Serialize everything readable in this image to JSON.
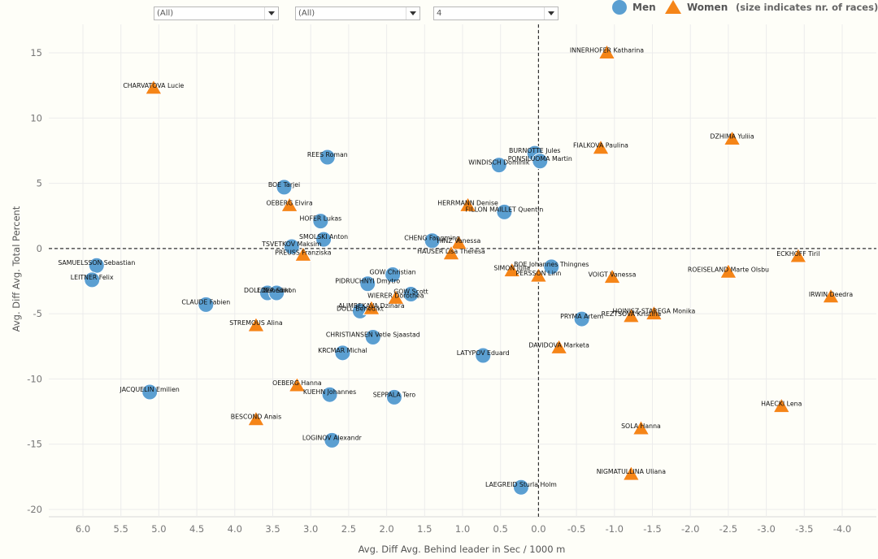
{
  "filters": [
    {
      "value": "(All)"
    },
    {
      "value": "(All)"
    },
    {
      "value": "4"
    }
  ],
  "legend": {
    "men_label": "Men",
    "women_label": "Women",
    "note": "(size indicates nr. of races)"
  },
  "colors": {
    "men": "#5b9fd1",
    "women": "#f58518",
    "background": "#fefef8",
    "grid": "#ececec",
    "axis_text": "#777777"
  },
  "chart_data": {
    "type": "scatter",
    "title": "",
    "xlabel": "Avg. Diff Avg. Behind leader in Sec / 1000 m",
    "ylabel": "Avg. Diff Avg. Total Percent",
    "x_reversed": true,
    "xlim": [
      6.5,
      -4.5
    ],
    "ylim": [
      -20.5,
      17
    ],
    "xticks": [
      6.0,
      5.5,
      5.0,
      4.5,
      4.0,
      3.5,
      3.0,
      2.5,
      2.0,
      1.5,
      1.0,
      0.5,
      0.0,
      -0.5,
      -1.0,
      -1.5,
      -2.0,
      -2.5,
      -3.0,
      -3.5,
      -4.0
    ],
    "xtick_labels": [
      "6.0",
      "5.5",
      "5.0",
      "4.5",
      "4.0",
      "3.5",
      "3.0",
      "2.5",
      "2.0",
      "1.5",
      "1.0",
      "0.5",
      "0.0",
      "-0.5",
      "-1.0",
      "-1.5",
      "-2.0",
      "-2.5",
      "-3.0",
      "-3.5",
      "-4.0"
    ],
    "yticks": [
      15,
      10,
      5,
      0,
      -5,
      -10,
      -15,
      -20
    ],
    "ytick_labels": [
      "15",
      "10",
      "5",
      "0",
      "-5",
      "-10",
      "-15",
      "-20"
    ],
    "grid": true,
    "reference_lines": {
      "x": 0,
      "y": 0
    },
    "legend_position": "top-right",
    "series": [
      {
        "name": "Men",
        "marker": "circle",
        "points": [
          {
            "label": "REES Roman",
            "x": 2.78,
            "y": 7.0
          },
          {
            "label": "BOE Tarjei",
            "x": 3.35,
            "y": 4.7
          },
          {
            "label": "HOFER Lukas",
            "x": 2.87,
            "y": 2.1
          },
          {
            "label": "SMOLSKI Anton",
            "x": 2.83,
            "y": 0.7
          },
          {
            "label": "TSVETKOV Maksim",
            "x": 3.25,
            "y": 0.15
          },
          {
            "label": "SAMUELSSON Sebastian",
            "x": 5.82,
            "y": -1.3
          },
          {
            "label": "LEITNER Felix",
            "x": 5.88,
            "y": -2.4
          },
          {
            "label": "DOLL Benedikt",
            "x": 3.57,
            "y": -3.4
          },
          {
            "label": "EDER Simon",
            "x": 3.45,
            "y": -3.4
          },
          {
            "label": "CLAUDE Fabien",
            "x": 4.38,
            "y": -4.3
          },
          {
            "label": "GOW Christian",
            "x": 1.92,
            "y": -2.0
          },
          {
            "label": "PIDRUCHNYI Dmytro",
            "x": 2.25,
            "y": -2.7
          },
          {
            "label": "GOW Scott",
            "x": 1.68,
            "y": -3.5
          },
          {
            "label": "DOLL Benedikt",
            "x": 2.35,
            "y": -4.8
          },
          {
            "label": "CHRISTIANSEN Vetle Sjaastad",
            "x": 2.18,
            "y": -6.8
          },
          {
            "label": "KRCMAR Michal",
            "x": 2.58,
            "y": -8.0
          },
          {
            "label": "KUEHN Johannes",
            "x": 2.75,
            "y": -11.2
          },
          {
            "label": "SEPPALA Tero",
            "x": 1.9,
            "y": -11.4
          },
          {
            "label": "LOGINOV Alexandr",
            "x": 2.72,
            "y": -14.7
          },
          {
            "label": "JACQUELIN Emilien",
            "x": 5.12,
            "y": -11.0
          },
          {
            "label": "CHENG Fangming",
            "x": 1.4,
            "y": 0.6
          },
          {
            "label": "BURNOTTE Jules",
            "x": 0.05,
            "y": 7.3
          },
          {
            "label": "PONSILUOMA Martin",
            "x": -0.02,
            "y": 6.7
          },
          {
            "label": "WINDISCH Dominik",
            "x": 0.52,
            "y": 6.4
          },
          {
            "label": "FILLON MAILLET Quentin",
            "x": 0.45,
            "y": 2.8
          },
          {
            "label": "BOE Johannes Thingnes",
            "x": -0.17,
            "y": -1.4
          },
          {
            "label": "PRYMA Artem",
            "x": -0.57,
            "y": -5.4
          },
          {
            "label": "LATYPOV Eduard",
            "x": 0.73,
            "y": -8.2
          },
          {
            "label": "LAEGREID Sturla Holm",
            "x": 0.23,
            "y": -18.3
          }
        ]
      },
      {
        "name": "Women",
        "marker": "triangle",
        "points": [
          {
            "label": "CHARVATOVA Lucie",
            "x": 5.07,
            "y": 12.3
          },
          {
            "label": "INNERHOFER Katharina",
            "x": -0.9,
            "y": 15.0
          },
          {
            "label": "DZHIMA Yuliia",
            "x": -2.55,
            "y": 8.4
          },
          {
            "label": "FIALKOVA Paulina",
            "x": -0.82,
            "y": 7.7
          },
          {
            "label": "OEBERG Elvira",
            "x": 3.28,
            "y": 3.3
          },
          {
            "label": "HERRMANN Denise",
            "x": 0.93,
            "y": 3.3
          },
          {
            "label": "HINZ Vanessa",
            "x": 1.05,
            "y": 0.4
          },
          {
            "label": "HAUSER Lisa Theresa",
            "x": 1.15,
            "y": -0.4
          },
          {
            "label": "PREUSS Franziska",
            "x": 3.1,
            "y": -0.5
          },
          {
            "label": "ECKHOFF Tiril",
            "x": -3.42,
            "y": -0.6
          },
          {
            "label": "SIMON Julia",
            "x": 0.35,
            "y": -1.7
          },
          {
            "label": "PERSSON Linn",
            "x": 0.0,
            "y": -2.1
          },
          {
            "label": "VOIGT Vanessa",
            "x": -0.97,
            "y": -2.2
          },
          {
            "label": "ROEISELAND Marte Olsbu",
            "x": -2.5,
            "y": -1.8
          },
          {
            "label": "IRWIN Deedra",
            "x": -3.85,
            "y": -3.7
          },
          {
            "label": "WIERER Dorothea",
            "x": 1.88,
            "y": -3.8
          },
          {
            "label": "ALIMBEKAVA Dzinara",
            "x": 2.2,
            "y": -4.6
          },
          {
            "label": "STREMOUS Alina",
            "x": 3.72,
            "y": -5.9
          },
          {
            "label": "HOJNISZ-STAREGA Monika",
            "x": -1.52,
            "y": -5.0
          },
          {
            "label": "REZTSOVA Kristina",
            "x": -1.22,
            "y": -5.2
          },
          {
            "label": "DAVIDOVA Marketa",
            "x": -0.27,
            "y": -7.6
          },
          {
            "label": "OEBERG Hanna",
            "x": 3.18,
            "y": -10.5
          },
          {
            "label": "BESCOND Anais",
            "x": 3.72,
            "y": -13.1
          },
          {
            "label": "HAECKI Lena",
            "x": -3.2,
            "y": -12.1
          },
          {
            "label": "SOLA Hanna",
            "x": -1.35,
            "y": -13.8
          },
          {
            "label": "NIGMATULLINA Uliana",
            "x": -1.22,
            "y": -17.3
          }
        ]
      }
    ]
  }
}
